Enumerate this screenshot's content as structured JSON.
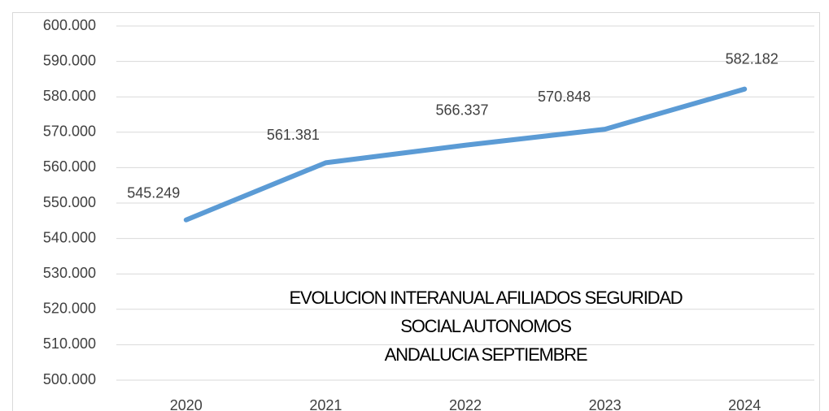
{
  "chart_data": {
    "type": "line",
    "title_lines": [
      "EVOLUCION INTERANUAL AFILIADOS SEGURIDAD",
      "SOCIAL AUTONOMOS",
      "ANDALUCIA SEPTIEMBRE"
    ],
    "categories": [
      "2020",
      "2021",
      "2022",
      "2023",
      "2024"
    ],
    "values": [
      545249,
      561381,
      566337,
      570848,
      582182
    ],
    "value_labels": [
      "545.249",
      "561.381",
      "566.337",
      "570.848",
      "582.182"
    ],
    "color": "#5b9bd5",
    "ylim": [
      500000,
      600000
    ],
    "yticks": [
      {
        "value": 500000,
        "label": "500.000"
      },
      {
        "value": 510000,
        "label": "510.000"
      },
      {
        "value": 520000,
        "label": "520.000"
      },
      {
        "value": 530000,
        "label": "530.000"
      },
      {
        "value": 540000,
        "label": "540.000"
      },
      {
        "value": 550000,
        "label": "550.000"
      },
      {
        "value": 560000,
        "label": "560.000"
      },
      {
        "value": 570000,
        "label": "570.000"
      },
      {
        "value": 580000,
        "label": "580.000"
      },
      {
        "value": 590000,
        "label": "590.000"
      },
      {
        "value": 600000,
        "label": "600.000"
      }
    ],
    "grid": true
  }
}
